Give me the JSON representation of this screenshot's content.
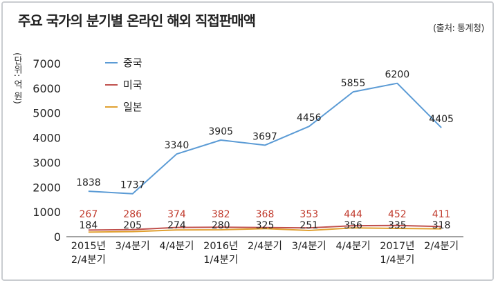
{
  "chart_data": {
    "type": "line",
    "title": "주요 국가의 분기별 온라인 해외 직접판매액",
    "source": "(출처: 통계청)",
    "ylabel": "(단위: 억 원)",
    "xlabel": "",
    "categories": [
      "2015년\n2/4분기",
      "3/4분기",
      "4/4분기",
      "2016년\n1/4분기",
      "2/4분기",
      "3/4분기",
      "4/4분기",
      "2017년\n1/4분기",
      "2/4분기"
    ],
    "ylim": [
      0,
      7000
    ],
    "yticks": [
      0,
      1000,
      2000,
      3000,
      4000,
      5000,
      6000,
      7000
    ],
    "grid": false,
    "legend_position": "top-left",
    "series": [
      {
        "name": "중국",
        "color": "#5b9bd5",
        "label_color": "#222222",
        "values": [
          1838,
          1737,
          3340,
          3905,
          3697,
          4456,
          5855,
          6200,
          4405
        ]
      },
      {
        "name": "미국",
        "color": "#c0504d",
        "label_color": "#c0392b",
        "values": [
          267,
          286,
          374,
          382,
          368,
          353,
          444,
          452,
          411
        ]
      },
      {
        "name": "일본",
        "color": "#e0a030",
        "label_color": "#222222",
        "values": [
          184,
          205,
          274,
          280,
          325,
          251,
          356,
          335,
          318
        ]
      }
    ]
  }
}
